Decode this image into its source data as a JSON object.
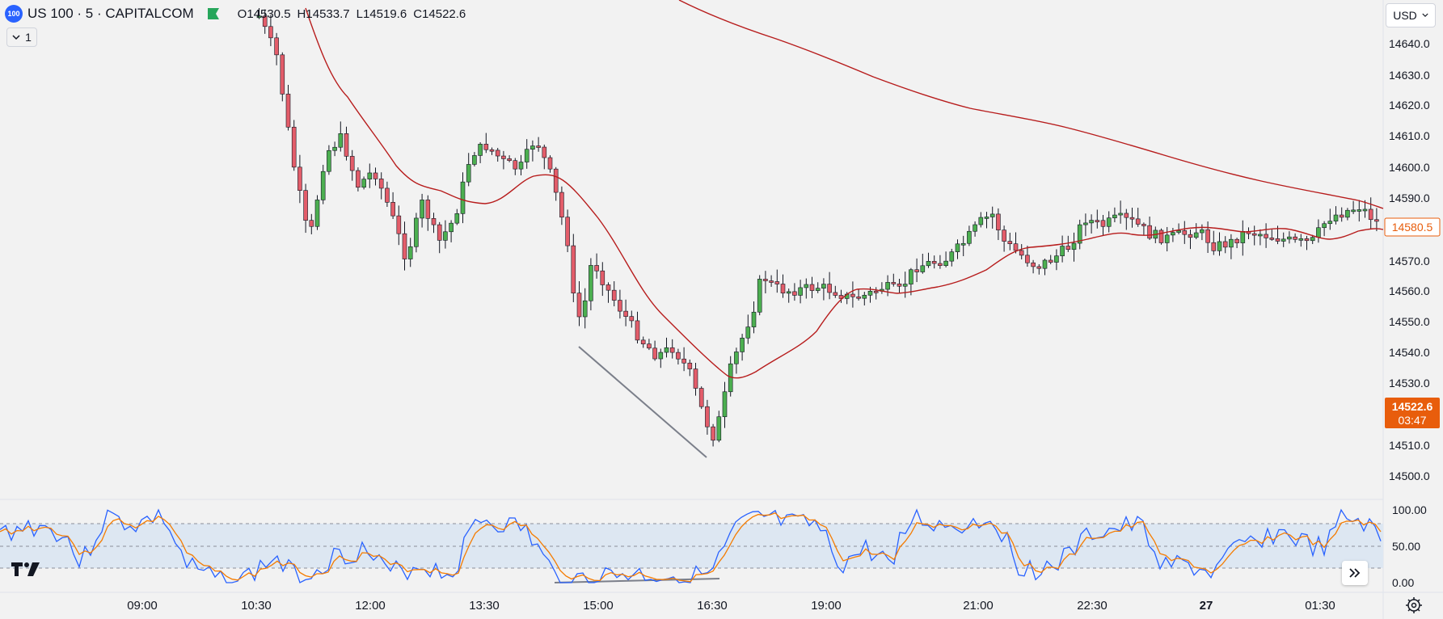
{
  "header": {
    "logo_text": "100",
    "symbol": "US 100 · 5 · CAPITALCOM",
    "ohlc": [
      {
        "key": "O",
        "value": "14530.5"
      },
      {
        "key": "H",
        "value": "14533.7"
      },
      {
        "key": "L",
        "value": "14519.6"
      },
      {
        "key": "C",
        "value": "14522.6"
      }
    ],
    "flag_color": "#26a65b"
  },
  "indicator_toggle": {
    "label": "1",
    "icon": "chevron-down-icon"
  },
  "currency": {
    "label": "USD",
    "icon": "chevron-down-icon"
  },
  "price_axis": {
    "ticks": [
      "14640.0",
      "14630.0",
      "14620.0",
      "14610.0",
      "14600.0",
      "14590.0",
      "14570.0",
      "14560.0",
      "14550.0",
      "14540.0",
      "14530.0",
      "14510.0",
      "14500.0"
    ],
    "ma_label": "14580.5",
    "last_price": "14522.6",
    "countdown": "03:47"
  },
  "oscillator_axis": {
    "ticks": [
      "100.00",
      "50.00",
      "0.00"
    ]
  },
  "time_axis": {
    "ticks": [
      "09:00",
      "10:30",
      "12:00",
      "13:30",
      "15:00",
      "16:30",
      "19:00",
      "21:00",
      "22:30",
      "27",
      "01:30"
    ]
  },
  "colors": {
    "up": "#4caf50",
    "down": "#e35d6a",
    "ma": "#b71c1c",
    "k_line": "#2962ff",
    "d_line": "#f57c00",
    "band_fill": "#dde7f2",
    "last_price_bg": "#e85d0c",
    "ma_label_border": "#e85d0c"
  },
  "icons": {
    "tv_logo": "tradingview-logo-icon",
    "scroll": "double-chevron-right-icon",
    "settings": "gear-icon"
  }
}
